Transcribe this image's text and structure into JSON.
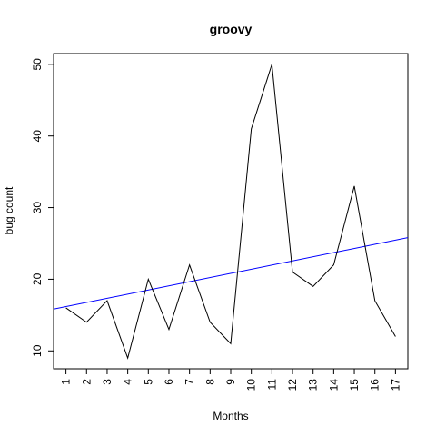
{
  "chart_data": {
    "type": "line",
    "title": "groovy",
    "xlabel": "Months",
    "ylabel": "bug count",
    "x": [
      "1",
      "2",
      "3",
      "4",
      "5",
      "6",
      "7",
      "8",
      "9",
      "10",
      "11",
      "12",
      "13",
      "14",
      "15",
      "16",
      "17"
    ],
    "y_ticks": [
      "10",
      "20",
      "30",
      "40",
      "50"
    ],
    "xlim": [
      0.4,
      17.6
    ],
    "ylim": [
      7.5,
      51.5
    ],
    "grid": false,
    "series": [
      {
        "values": [
          16,
          14,
          17,
          9,
          20,
          13,
          22,
          14,
          11,
          41,
          50,
          21,
          19,
          22,
          33,
          17,
          12
        ],
        "color": "#000000"
      }
    ],
    "trendline": {
      "intercept": 15.6,
      "slope": 0.58,
      "color": "#0000ff"
    }
  }
}
